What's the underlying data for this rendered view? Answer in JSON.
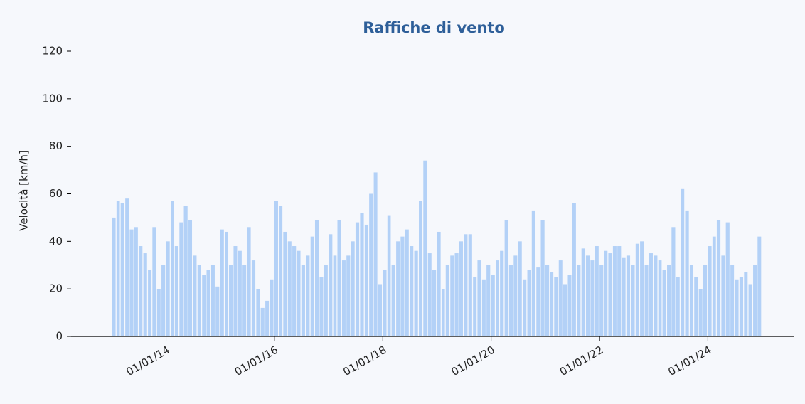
{
  "chart_data": {
    "type": "bar",
    "title": "Raffiche di vento",
    "ylabel": "Velocità [km/h]",
    "color": "#b3d1f7",
    "x": [
      "01/01/13",
      "01/02/13",
      "01/03/13",
      "01/04/13",
      "01/05/13",
      "01/06/13",
      "01/07/13",
      "01/08/13",
      "01/09/13",
      "01/10/13",
      "01/11/13",
      "01/12/13",
      "01/01/14",
      "01/02/14",
      "01/03/14",
      "01/04/14",
      "01/05/14",
      "01/06/14",
      "01/07/14",
      "01/08/14",
      "01/09/14",
      "01/10/14",
      "01/11/14",
      "01/12/14",
      "01/01/15",
      "01/02/15",
      "01/03/15",
      "01/04/15",
      "01/05/15",
      "01/06/15",
      "01/07/15",
      "01/08/15",
      "01/09/15",
      "01/10/15",
      "01/11/15",
      "01/12/15",
      "01/01/16",
      "01/02/16",
      "01/03/16",
      "01/04/16",
      "01/05/16",
      "01/06/16",
      "01/07/16",
      "01/08/16",
      "01/09/16",
      "01/10/16",
      "01/11/16",
      "01/12/16",
      "01/01/17",
      "01/02/17",
      "01/03/17",
      "01/04/17",
      "01/05/17",
      "01/06/17",
      "01/07/17",
      "01/08/17",
      "01/09/17",
      "01/10/17",
      "01/11/17",
      "01/12/17",
      "01/01/18",
      "01/02/18",
      "01/03/18",
      "01/04/18",
      "01/05/18",
      "01/06/18",
      "01/07/18",
      "01/08/18",
      "01/09/18",
      "01/10/18",
      "01/11/18",
      "01/12/18",
      "01/01/19",
      "01/02/19",
      "01/03/19",
      "01/04/19",
      "01/05/19",
      "01/06/19",
      "01/07/19",
      "01/08/19",
      "01/09/19",
      "01/10/19",
      "01/11/19",
      "01/12/19",
      "01/01/20",
      "01/02/20",
      "01/03/20",
      "01/04/20",
      "01/05/20",
      "01/06/20",
      "01/07/20",
      "01/08/20",
      "01/09/20",
      "01/10/20",
      "01/11/20",
      "01/12/20",
      "01/01/21",
      "01/02/21",
      "01/03/21",
      "01/04/21",
      "01/05/21",
      "01/06/21",
      "01/07/21",
      "01/08/21",
      "01/09/21",
      "01/10/21",
      "01/11/21",
      "01/12/21",
      "01/01/22",
      "01/02/22",
      "01/03/22",
      "01/04/22",
      "01/05/22",
      "01/06/22",
      "01/07/22",
      "01/08/22",
      "01/09/22",
      "01/10/22",
      "01/11/22",
      "01/12/22",
      "01/01/23",
      "01/02/23",
      "01/03/23",
      "01/04/23",
      "01/05/23",
      "01/06/23",
      "01/07/23",
      "01/08/23",
      "01/09/23",
      "01/10/23",
      "01/11/23",
      "01/12/23",
      "01/01/24",
      "01/02/24",
      "01/03/24",
      "01/04/24",
      "01/05/24",
      "01/06/24",
      "01/07/24",
      "01/08/24",
      "01/09/24",
      "01/10/24",
      "01/11/24",
      "01/12/24"
    ],
    "values": [
      50,
      57,
      56,
      58,
      45,
      46,
      38,
      35,
      28,
      46,
      20,
      30,
      40,
      57,
      38,
      48,
      55,
      49,
      34,
      30,
      26,
      28,
      30,
      21,
      45,
      44,
      30,
      38,
      36,
      30,
      46,
      32,
      20,
      12,
      15,
      24,
      57,
      55,
      44,
      40,
      38,
      36,
      30,
      34,
      42,
      49,
      25,
      30,
      43,
      34,
      49,
      32,
      34,
      40,
      48,
      52,
      47,
      60,
      69,
      22,
      28,
      51,
      30,
      40,
      42,
      45,
      38,
      36,
      57,
      74,
      35,
      28,
      44,
      20,
      30,
      34,
      35,
      40,
      43,
      43,
      25,
      32,
      24,
      30,
      26,
      32,
      36,
      49,
      30,
      34,
      40,
      24,
      28,
      53,
      29,
      49,
      30,
      27,
      25,
      32,
      22,
      26,
      56,
      30,
      37,
      34,
      32,
      38,
      30,
      36,
      35,
      38,
      38,
      33,
      34,
      30,
      39,
      40,
      30,
      35,
      34,
      32,
      28,
      30,
      46,
      25,
      62,
      53,
      30,
      25,
      20,
      30,
      38,
      42,
      49,
      34,
      48,
      30,
      24,
      25,
      27,
      22,
      30,
      42
    ],
    "xlim": [
      "01/04/12",
      "01/08/25"
    ],
    "xticks": [
      "01/01/14",
      "01/01/16",
      "01/01/18",
      "01/01/20",
      "01/01/22",
      "01/01/24"
    ],
    "ylim": [
      0,
      120
    ],
    "yticks": [
      0,
      20,
      40,
      60,
      80,
      100,
      120
    ]
  }
}
